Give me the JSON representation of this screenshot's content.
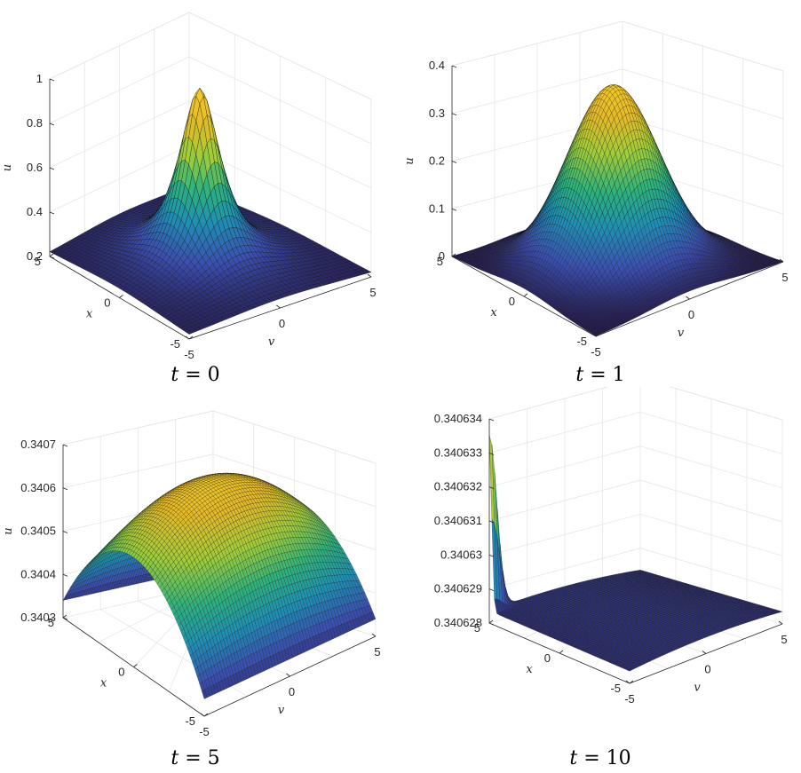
{
  "chart_data": [
    {
      "type": "surface",
      "caption": {
        "var": "t",
        "op": "=",
        "val": "0"
      },
      "xlabel": "x",
      "ylabel": "v",
      "zlabel": "u",
      "x_range": [
        -5,
        5
      ],
      "v_range": [
        -5,
        5
      ],
      "xticks": [
        "5",
        "0",
        "-5"
      ],
      "vticks": [
        "-5",
        "0",
        "5"
      ],
      "zlim": [
        0,
        1
      ],
      "zticks": [
        "0.2",
        "0.4",
        "0.6",
        "0.8",
        "1"
      ],
      "peak": 1.0,
      "grid": true,
      "colormap": [
        "#241a4a",
        "#3b4fb0",
        "#1e8fb4",
        "#2fb37a",
        "#9fcd3a",
        "#e7b92a",
        "#f2d02b"
      ]
    },
    {
      "type": "surface",
      "caption": {
        "var": "t",
        "op": "=",
        "val": "1"
      },
      "xlabel": "x",
      "ylabel": "v",
      "zlabel": "u",
      "x_range": [
        -5,
        5
      ],
      "v_range": [
        -5,
        5
      ],
      "xticks": [
        "5",
        "0",
        "-5"
      ],
      "vticks": [
        "-5",
        "0",
        "5"
      ],
      "zlim": [
        0,
        0.4
      ],
      "zticks": [
        "0",
        "0.1",
        "0.2",
        "0.3",
        "0.4"
      ],
      "peak": 0.38,
      "grid": true,
      "colormap": [
        "#241a4a",
        "#3b4fb0",
        "#1e8fb4",
        "#2fb37a",
        "#9fcd3a",
        "#e7b92a",
        "#f2d02b"
      ]
    },
    {
      "type": "surface",
      "caption": {
        "var": "t",
        "op": "=",
        "val": "5"
      },
      "xlabel": "x",
      "ylabel": "v",
      "zlabel": "u",
      "x_range": [
        -5,
        5
      ],
      "v_range": [
        -5,
        5
      ],
      "xticks": [
        "5",
        "0",
        "-5"
      ],
      "vticks": [
        "-5",
        "0",
        "5"
      ],
      "zlim": [
        0.3403,
        0.3407
      ],
      "zticks": [
        "0.3403",
        "0.3404",
        "0.3405",
        "0.3406",
        "0.3407"
      ],
      "peak": 0.34067,
      "grid": true,
      "colormap": [
        "#241a4a",
        "#3b4fb0",
        "#1e8fb4",
        "#2fb37a",
        "#9fcd3a",
        "#e7b92a",
        "#f2d02b"
      ]
    },
    {
      "type": "surface",
      "caption": {
        "var": "t",
        "op": "=",
        "val": "10"
      },
      "xlabel": "x",
      "ylabel": "v",
      "zlabel": "u",
      "x_range": [
        -5,
        5
      ],
      "v_range": [
        -5,
        5
      ],
      "xticks": [
        "5",
        "0",
        "-5"
      ],
      "vticks": [
        "-5",
        "0",
        "5"
      ],
      "zlim": [
        0.340628,
        0.340634
      ],
      "zticks": [
        "0.340628",
        "0.340629",
        "0.34063",
        "0.340631",
        "0.340632",
        "0.340633",
        "0.340634"
      ],
      "peak": 0.3406335,
      "grid": true,
      "colormap": [
        "#241a4a",
        "#3b4fb0",
        "#1e8fb4",
        "#2fb37a",
        "#9fcd3a",
        "#e7b92a",
        "#f2d02b"
      ]
    }
  ]
}
